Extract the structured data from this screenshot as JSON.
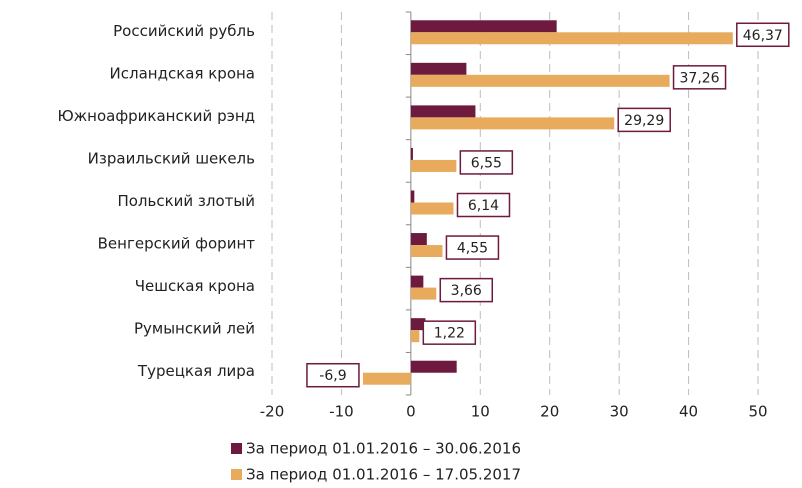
{
  "chart_data": {
    "type": "hbar",
    "categories": [
      "Российский рубль",
      "Исландская крона",
      "Южноафриканский рэнд",
      "Израильский шекель",
      "Польский злотый",
      "Венгерский форинт",
      "Чешская крона",
      "Румынский лей",
      "Турецкая лира"
    ],
    "series": [
      {
        "name": "За период 01.01.2016 – 30.06.2016",
        "color": "#6d1a3e",
        "values": [
          21,
          8,
          9.3,
          0.3,
          0.5,
          2.3,
          1.8,
          2.1,
          6.6
        ]
      },
      {
        "name": "За период 01.01.2016 – 17.05.2017",
        "color": "#e8aa5c",
        "values": [
          46.37,
          37.26,
          29.29,
          6.55,
          6.14,
          4.55,
          3.66,
          1.22,
          -6.9
        ],
        "value_labels": [
          "46,37",
          "37,26",
          "29,29",
          "6,55",
          "6,14",
          "4,55",
          "3,66",
          "1,22",
          "-6,9"
        ]
      }
    ],
    "xlim": [
      -20,
      50
    ],
    "xticks": [
      -20,
      -10,
      0,
      10,
      20,
      30,
      40,
      50
    ],
    "grid": true,
    "legend": "bottom"
  }
}
